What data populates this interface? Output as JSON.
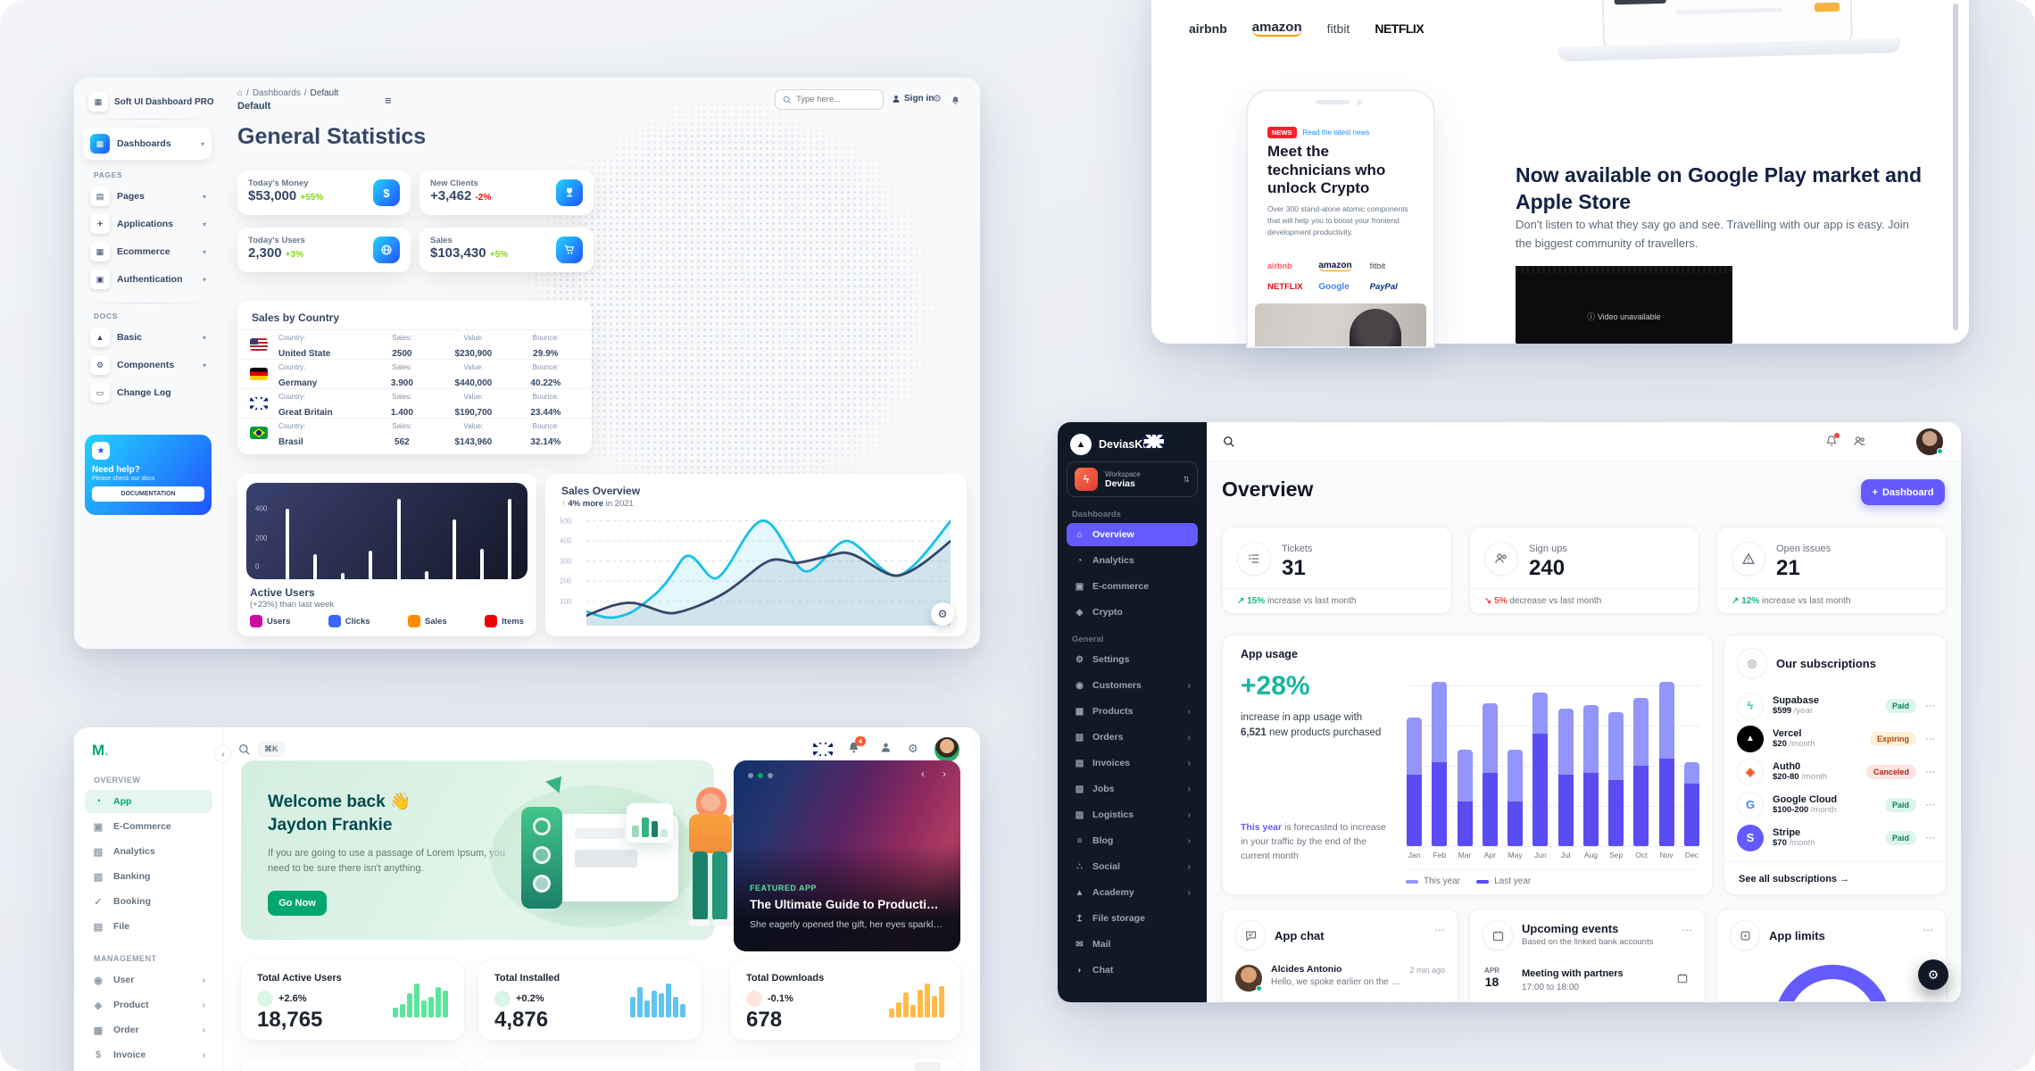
{
  "ui": {
    "plus": "+",
    "slash": "/",
    "home": "⌂",
    "menu": "≡",
    "dots": "⋯",
    "chev_down": "▾",
    "chev_right": "›",
    "chev_left": "‹",
    "updown": "⇅",
    "arrow_up": "↑",
    "arrow_ne": "↗",
    "arrow_se": "↘",
    "arrow_right": "→",
    "info_glyph": "ⓘ",
    "star": "★",
    "gear": "⚙"
  },
  "softui": {
    "brand": "Soft UI Dashboard PRO",
    "brand_glyph": "▦",
    "dash_item": {
      "icon": "▦",
      "label": "Dashboards",
      "chev": "▾"
    },
    "pages_title": "PAGES",
    "pages": [
      {
        "icon": "▤",
        "label": "Pages",
        "chev": "▾"
      },
      {
        "icon": "✈",
        "label": "Applications",
        "chev": "▾"
      },
      {
        "icon": "▦",
        "label": "Ecommerce",
        "chev": "▾"
      },
      {
        "icon": "▣",
        "label": "Authentication",
        "chev": "▾"
      }
    ],
    "docs_title": "DOCS",
    "docs": [
      {
        "icon": "▲",
        "label": "Basic",
        "chev": "▾"
      },
      {
        "icon": "⚙",
        "label": "Components",
        "chev": "▾"
      },
      {
        "icon": "▭",
        "label": "Change Log",
        "chev": ""
      }
    ],
    "help": {
      "title": "Need help?",
      "subtitle": "Please check our docs",
      "button": "DOCUMENTATION"
    },
    "header": {
      "crumb1": "Dashboards",
      "crumb2": "Default",
      "page": "Default",
      "search_placeholder": "Type here...",
      "signin": "Sign in"
    },
    "title": "General Statistics",
    "stats": [
      {
        "label": "Today's Money",
        "value": "$53,000",
        "delta": "+55%",
        "cls": "up"
      },
      {
        "label": "New Clients",
        "value": "+3,462",
        "delta": "-2%",
        "cls": "down"
      },
      {
        "label": "Today's Users",
        "value": "2,300",
        "delta": "+3%",
        "cls": "up"
      },
      {
        "label": "Sales",
        "value": "$103,430",
        "delta": "+5%",
        "cls": "up"
      }
    ],
    "country": {
      "title": "Sales by Country",
      "labels": {
        "country": "Country:",
        "sales": "Sales:",
        "value": "Value:",
        "bounce": "Bounce:"
      },
      "rows": [
        {
          "flag": "us",
          "country": "United State",
          "sales": "2500",
          "value": "$230,900",
          "bounce": "29.9%"
        },
        {
          "flag": "de",
          "country": "Germany",
          "sales": "3.900",
          "value": "$440,000",
          "bounce": "40.22%"
        },
        {
          "flag": "gb",
          "country": "Great Britain",
          "sales": "1.400",
          "value": "$190,700",
          "bounce": "23.44%"
        },
        {
          "flag": "br",
          "country": "Brasil",
          "sales": "562",
          "value": "$143,960",
          "bounce": "32.14%"
        }
      ]
    },
    "active_users": {
      "title": "Active Users",
      "subtitle": "(+23%) than last week",
      "legend": [
        {
          "label": "Users",
          "color": "#cb0c9f"
        },
        {
          "label": "Clicks",
          "color": "#3a66ff"
        },
        {
          "label": "Sales",
          "color": "#fb8c00"
        },
        {
          "label": "Items",
          "color": "#ea0606"
        }
      ]
    },
    "sales_overview": {
      "title": "Sales Overview",
      "arrow": "↑",
      "subtitle_bold": "4% more",
      "subtitle_rest": "in 2021"
    }
  },
  "landing": {
    "logos_top": [
      "airbnb",
      "amazon",
      "fitbit",
      "NETFLIX"
    ],
    "phone": {
      "badge": "NEWS",
      "link": "Read the latest news",
      "heading": "Meet the technicians who unlock Crypto",
      "body": "Over 300 stand-alone atomic components that will help you to boost your frontend development productivity.",
      "logos": [
        "airbnb",
        "amazon",
        "fitbit",
        "NETFLIX",
        "Google",
        "PayPal"
      ]
    },
    "right": {
      "heading": "Now available on Google Play market and Apple Store",
      "body": "Don't listen to what they say go and see. Travelling with our app is easy. Join the biggest community of travellers.",
      "video_text": "Video unavailable"
    }
  },
  "devias": {
    "brand": "DeviasKit",
    "workspace": {
      "label": "Workspace",
      "name": "Devias",
      "avatar_glyph": "ϟ"
    },
    "nav_a_title": "Dashboards",
    "nav_a": [
      {
        "icon": "⌂",
        "label": "Overview",
        "cls": "active",
        "chev": ""
      },
      {
        "icon": "◔",
        "label": "Analytics",
        "chev": ""
      },
      {
        "icon": "▣",
        "label": "E-commerce",
        "chev": ""
      },
      {
        "icon": "◈",
        "label": "Crypto",
        "chev": ""
      }
    ],
    "nav_b_title": "General",
    "nav_b": [
      {
        "icon": "⚙",
        "label": "Settings",
        "chev": ""
      },
      {
        "icon": "◉",
        "label": "Customers",
        "chev": "›"
      },
      {
        "icon": "▦",
        "label": "Products",
        "chev": "›"
      },
      {
        "icon": "▥",
        "label": "Orders",
        "chev": "›"
      },
      {
        "icon": "▤",
        "label": "Invoices",
        "chev": "›"
      },
      {
        "icon": "▧",
        "label": "Jobs",
        "chev": "›"
      },
      {
        "icon": "▨",
        "label": "Logistics",
        "chev": "›"
      },
      {
        "icon": "≡",
        "label": "Blog",
        "chev": "›"
      },
      {
        "icon": "∴",
        "label": "Social",
        "chev": "›"
      },
      {
        "icon": "▲",
        "label": "Academy",
        "chev": "›"
      },
      {
        "icon": "↥",
        "label": "File storage",
        "chev": ""
      },
      {
        "icon": "✉",
        "label": "Mail",
        "chev": ""
      },
      {
        "icon": "◗",
        "label": "Chat",
        "chev": ""
      }
    ],
    "page_title": "Overview",
    "dashboard_button": "Dashboard",
    "tiles": [
      {
        "label": "Tickets",
        "value": "31",
        "arrow": "↗",
        "pct": "15%",
        "rest": "increase vs last month",
        "cls": "tile-up"
      },
      {
        "label": "Sign ups",
        "value": "240",
        "arrow": "↘",
        "pct": "5%",
        "rest": "decrease vs last month",
        "cls": "tile-down"
      },
      {
        "label": "Open issues",
        "value": "21",
        "arrow": "↗",
        "pct": "12%",
        "rest": "increase vs last month",
        "cls": "tile-up"
      }
    ],
    "app_usage": {
      "title": "App usage",
      "pct": "+28%",
      "line1": "increase in app usage with",
      "line2_bold": "6,521",
      "line2_rest": "new products purchased",
      "foot_hl": "This year",
      "foot_rest": "is forecasted to increase in your traffic by the end of the current month",
      "legend_this": "This year",
      "legend_last": "Last year"
    },
    "subs": {
      "title": "Our subscriptions",
      "footer": "See all subscriptions",
      "rows": [
        {
          "name": "Supabase",
          "price": "$599",
          "period": "/year",
          "status": "Paid",
          "pill": "paid",
          "logo": "logo-supabase",
          "glyph": "ϟ"
        },
        {
          "name": "Vercel",
          "price": "$20",
          "period": "/month",
          "status": "Expiring",
          "pill": "expiring",
          "logo": "logo-vercel",
          "glyph": "▲"
        },
        {
          "name": "Auth0",
          "price": "$20-80",
          "period": "/month",
          "status": "Canceled",
          "pill": "canceled",
          "logo": "logo-auth0",
          "glyph": "◈"
        },
        {
          "name": "Google Cloud",
          "price": "$100-200",
          "period": "/month",
          "status": "Paid",
          "pill": "paid",
          "logo": "logo-google",
          "glyph": "G"
        },
        {
          "name": "Stripe",
          "price": "$70",
          "period": "/month",
          "status": "Paid",
          "pill": "paid",
          "logo": "logo-stripe",
          "glyph": "S"
        }
      ]
    },
    "chat": {
      "title": "App chat",
      "name": "Alcides Antonio",
      "msg": "Hello, we spoke earlier on the phone",
      "time": "2 min ago"
    },
    "events": {
      "title": "Upcoming events",
      "subtitle": "Based on the linked bank accounts",
      "month": "APR",
      "day": "18",
      "event": "Meeting with partners",
      "time": "17:00 to 18:00"
    },
    "limits": {
      "title": "App limits"
    }
  },
  "minimal": {
    "logo": "M",
    "nav_a_title": "OVERVIEW",
    "nav_a": [
      {
        "icon": "◔",
        "label": "App",
        "cls": "active",
        "chev": ""
      },
      {
        "icon": "▣",
        "label": "E-Commerce",
        "chev": ""
      },
      {
        "icon": "▧",
        "label": "Analytics",
        "chev": ""
      },
      {
        "icon": "▥",
        "label": "Banking",
        "chev": ""
      },
      {
        "icon": "✓",
        "label": "Booking",
        "chev": ""
      },
      {
        "icon": "▤",
        "label": "File",
        "chev": ""
      }
    ],
    "nav_b_title": "MANAGEMENT",
    "nav_b": [
      {
        "icon": "◉",
        "label": "User",
        "chev": "›"
      },
      {
        "icon": "◈",
        "label": "Product",
        "chev": "›"
      },
      {
        "icon": "▦",
        "label": "Order",
        "chev": "›"
      },
      {
        "icon": "$",
        "label": "Invoice",
        "chev": "›"
      }
    ],
    "topbar": {
      "shortcut": "⌘K",
      "bell_count": "4"
    },
    "welcome": {
      "heading1": "Welcome back 👋",
      "heading2": "Jaydon Frankie",
      "body": "If you are going to use a passage of Lorem Ipsum, you need to be sure there isn't anything.",
      "button": "Go Now"
    },
    "featured": {
      "tag": "FEATURED APP",
      "title": "The Ultimate Guide to Productivity H...",
      "subtitle": "She eagerly opened the gift, her eyes sparkling with exc..."
    },
    "stats": [
      {
        "label": "Total Active Users",
        "delta": "+2.6%",
        "cls": "up",
        "value": "18,765",
        "chart": "spark-active-users"
      },
      {
        "label": "Total Installed",
        "delta": "+0.2%",
        "cls": "up",
        "value": "4,876",
        "chart": "spark-installed"
      },
      {
        "label": "Total Downloads",
        "delta": "-0.1%",
        "cls": "down",
        "value": "678",
        "chart": "spark-downloads"
      }
    ]
  },
  "chart_data": [
    {
      "id": "softui-active-users",
      "type": "bar",
      "title": "Active Users",
      "values": [
        450,
        200,
        100,
        220,
        500,
        110,
        390,
        230,
        500
      ],
      "yticks": [
        400,
        200,
        0
      ],
      "ylim": [
        0,
        520
      ],
      "bar_color": "#ffffff"
    },
    {
      "id": "softui-sales-overview",
      "type": "line",
      "title": "Sales Overview",
      "yticks": [
        500,
        400,
        300,
        200,
        100
      ],
      "ylim": [
        0,
        520
      ],
      "grid": "dashed",
      "series": [
        {
          "name": "current-year",
          "color": "#17c1e8",
          "x_pct": [
            0,
            8,
            18,
            26,
            36,
            48,
            60,
            72,
            86,
            100
          ],
          "y": [
            50,
            20,
            120,
            300,
            215,
            500,
            250,
            400,
            230,
            500
          ]
        },
        {
          "name": "previous-year",
          "color": "#344767",
          "x_pct": [
            0,
            13,
            24,
            38,
            50,
            58,
            70,
            86,
            100
          ],
          "y": [
            30,
            90,
            40,
            140,
            300,
            290,
            340,
            230,
            400
          ]
        }
      ]
    },
    {
      "id": "devias-app-usage",
      "type": "stacked-bar",
      "categories": [
        "Jan",
        "Feb",
        "Mar",
        "Apr",
        "May",
        "Jun",
        "Jul",
        "Aug",
        "Sep",
        "Oct",
        "Nov",
        "Dec"
      ],
      "max": 100,
      "series": [
        {
          "name": "This year",
          "color": "#9295f9",
          "values": [
            32,
            45,
            29,
            39,
            29,
            23,
            37,
            38,
            38,
            38,
            43,
            12
          ]
        },
        {
          "name": "Last year",
          "color": "#5a4cf3",
          "values": [
            40,
            47,
            25,
            41,
            25,
            63,
            40,
            41,
            37,
            45,
            49,
            35
          ]
        }
      ]
    },
    {
      "id": "spark-active-users",
      "type": "bar",
      "color": "#5be49b",
      "values": [
        3,
        4,
        7,
        10,
        5,
        6,
        9,
        8
      ]
    },
    {
      "id": "spark-installed",
      "type": "bar",
      "color": "#61c4f0",
      "values": [
        6,
        9,
        5,
        8,
        7,
        10,
        6,
        4
      ]
    },
    {
      "id": "spark-downloads",
      "type": "bar",
      "color": "#ffbb45",
      "values": [
        3,
        5,
        8,
        4,
        9,
        11,
        7,
        10
      ]
    }
  ]
}
